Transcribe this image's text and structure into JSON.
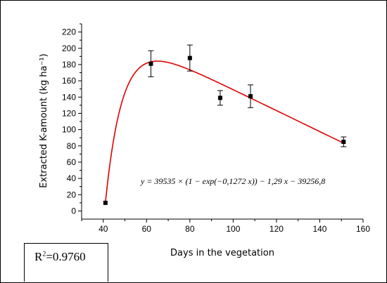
{
  "chart_data": {
    "type": "scatter",
    "xlabel": "Days in the vegetation",
    "ylabel": "Extracted K-amount (kg ha⁻¹)",
    "xlim": [
      30,
      160
    ],
    "ylim": [
      -10,
      230
    ],
    "xticks": [
      40,
      60,
      80,
      100,
      120,
      140,
      160
    ],
    "yticks": [
      0,
      20,
      40,
      60,
      80,
      100,
      120,
      140,
      160,
      180,
      200,
      220
    ],
    "grid": false,
    "series": [
      {
        "x": [
          41,
          62,
          80,
          94,
          108,
          151
        ],
        "y": [
          10,
          181,
          188,
          139,
          141,
          85
        ],
        "error": [
          0,
          16,
          16,
          9,
          14,
          6
        ]
      }
    ],
    "fit": {
      "equation": "y = 39535 × (1 − exp(−0,1272 x)) − 1,29 x − 39256,8",
      "model": {
        "A": 39535,
        "k": 0.1272,
        "b": 1.29,
        "c": 39256.8
      },
      "x_range": [
        41,
        151
      ],
      "color": "#e00000"
    },
    "r2_label": "R²=0.9760"
  }
}
